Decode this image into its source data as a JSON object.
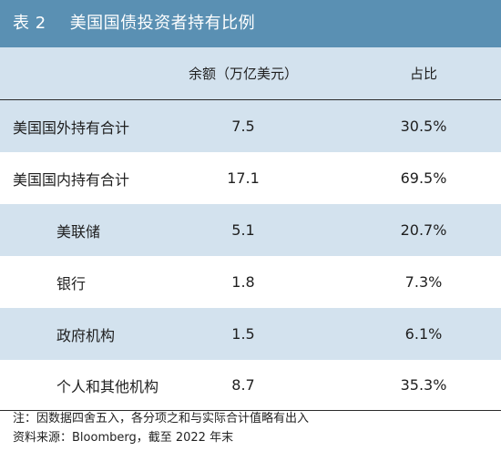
{
  "title": {
    "number": "表 2",
    "text": "美国国债投资者持有比例"
  },
  "table": {
    "headers": {
      "name": "",
      "amount": "余额（万亿美元）",
      "share": "占比"
    },
    "rows": [
      {
        "name": "美国国外持有合计",
        "amount": "7.5",
        "share": "30.5%",
        "indent": false
      },
      {
        "name": "美国国内持有合计",
        "amount": "17.1",
        "share": "69.5%",
        "indent": false
      },
      {
        "name": "美联储",
        "amount": "5.1",
        "share": "20.7%",
        "indent": true
      },
      {
        "name": "银行",
        "amount": "1.8",
        "share": "7.3%",
        "indent": true
      },
      {
        "name": "政府机构",
        "amount": "1.5",
        "share": "6.1%",
        "indent": true
      },
      {
        "name": "个人和其他机构",
        "amount": "8.7",
        "share": "35.3%",
        "indent": true
      }
    ]
  },
  "notes": {
    "note": "注：因数据四舍五入，各分项之和与实际合计值略有出入",
    "source": "资料来源：Bloomberg，截至 2022 年末"
  }
}
